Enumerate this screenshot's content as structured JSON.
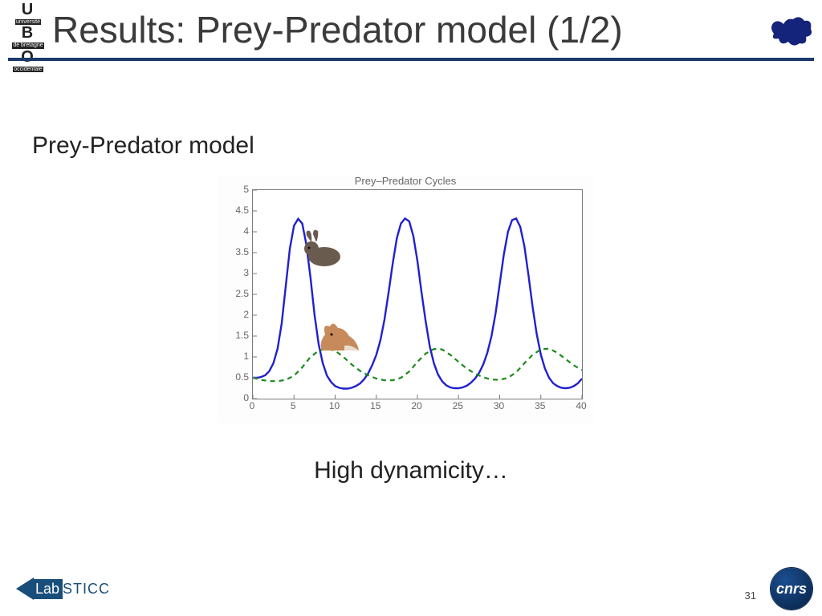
{
  "title": "Results: Prey-Predator model (1/2)",
  "subtitle": "Prey-Predator model",
  "caption": "High dynamicity…",
  "page_number": "31",
  "hr_color": "#1b3a6b",
  "logos": {
    "ubo_line1": "U",
    "ubo_line2": "université",
    "ubo_line3": "B",
    "ubo_line4": "de bretagne",
    "ubo_line5": "O",
    "ubo_line6": "occidentale",
    "labsticc_left": "Lab",
    "labsticc_right": "STICC",
    "cnrs": "cnrs"
  },
  "chart": {
    "type": "line",
    "title": "Prey–Predator Cycles",
    "background_color": "#ffffff",
    "axis_color": "#7a7a7a",
    "xlim": [
      0,
      40
    ],
    "ylim": [
      0,
      5
    ],
    "xticks": [
      0,
      5,
      10,
      15,
      20,
      25,
      30,
      35,
      40
    ],
    "yticks": [
      0,
      0.5,
      1,
      1.5,
      2,
      2.5,
      3,
      3.5,
      4,
      4.5,
      5
    ],
    "tick_fontsize": 12,
    "tick_color": "#666666",
    "series": [
      {
        "name": "prey",
        "color": "#2020d0",
        "stroke_width": 2.4,
        "dash": "none",
        "marker_icon": "rabbit",
        "icon_pos": {
          "x": 8.5,
          "y": 3.6
        },
        "data": [
          [
            0,
            0.5
          ],
          [
            0.5,
            0.5
          ],
          [
            1,
            0.52
          ],
          [
            1.5,
            0.56
          ],
          [
            2,
            0.66
          ],
          [
            2.5,
            0.85
          ],
          [
            3,
            1.2
          ],
          [
            3.5,
            1.8
          ],
          [
            4,
            2.7
          ],
          [
            4.5,
            3.6
          ],
          [
            5,
            4.15
          ],
          [
            5.5,
            4.31
          ],
          [
            6,
            4.2
          ],
          [
            6.5,
            3.7
          ],
          [
            7,
            2.9
          ],
          [
            7.5,
            2.0
          ],
          [
            8,
            1.3
          ],
          [
            8.5,
            0.85
          ],
          [
            9,
            0.55
          ],
          [
            9.5,
            0.4
          ],
          [
            10,
            0.3
          ],
          [
            10.5,
            0.26
          ],
          [
            11,
            0.24
          ],
          [
            11.5,
            0.24
          ],
          [
            12,
            0.26
          ],
          [
            12.5,
            0.3
          ],
          [
            13,
            0.36
          ],
          [
            13.5,
            0.46
          ],
          [
            14,
            0.6
          ],
          [
            14.5,
            0.8
          ],
          [
            15,
            1.05
          ],
          [
            15.5,
            1.4
          ],
          [
            16,
            1.9
          ],
          [
            16.5,
            2.55
          ],
          [
            17,
            3.25
          ],
          [
            17.5,
            3.85
          ],
          [
            18,
            4.2
          ],
          [
            18.5,
            4.32
          ],
          [
            19,
            4.25
          ],
          [
            19.5,
            3.9
          ],
          [
            20,
            3.3
          ],
          [
            20.5,
            2.55
          ],
          [
            21,
            1.85
          ],
          [
            21.5,
            1.25
          ],
          [
            22,
            0.85
          ],
          [
            22.5,
            0.58
          ],
          [
            23,
            0.42
          ],
          [
            23.5,
            0.32
          ],
          [
            24,
            0.27
          ],
          [
            24.5,
            0.25
          ],
          [
            25,
            0.25
          ],
          [
            25.5,
            0.27
          ],
          [
            26,
            0.31
          ],
          [
            26.5,
            0.38
          ],
          [
            27,
            0.48
          ],
          [
            27.5,
            0.62
          ],
          [
            28,
            0.82
          ],
          [
            28.5,
            1.1
          ],
          [
            29,
            1.5
          ],
          [
            29.5,
            2.05
          ],
          [
            30,
            2.75
          ],
          [
            30.5,
            3.45
          ],
          [
            31,
            4.0
          ],
          [
            31.5,
            4.28
          ],
          [
            32,
            4.32
          ],
          [
            32.5,
            4.12
          ],
          [
            33,
            3.65
          ],
          [
            33.5,
            2.95
          ],
          [
            34,
            2.2
          ],
          [
            34.5,
            1.55
          ],
          [
            35,
            1.05
          ],
          [
            35.5,
            0.72
          ],
          [
            36,
            0.5
          ],
          [
            36.5,
            0.37
          ],
          [
            37,
            0.3
          ],
          [
            37.5,
            0.26
          ],
          [
            38,
            0.25
          ],
          [
            38.5,
            0.26
          ],
          [
            39,
            0.3
          ],
          [
            39.5,
            0.37
          ],
          [
            40,
            0.48
          ]
        ]
      },
      {
        "name": "predator",
        "color": "#1a8a1a",
        "stroke_width": 2.2,
        "dash": "6,5",
        "marker_icon": "fox",
        "icon_pos": {
          "x": 10.5,
          "y": 1.5
        },
        "data": [
          [
            0,
            0.5
          ],
          [
            1,
            0.45
          ],
          [
            2,
            0.42
          ],
          [
            3,
            0.42
          ],
          [
            4,
            0.45
          ],
          [
            5,
            0.55
          ],
          [
            6,
            0.75
          ],
          [
            7,
            1.0
          ],
          [
            8,
            1.15
          ],
          [
            9,
            1.2
          ],
          [
            10,
            1.15
          ],
          [
            11,
            1.0
          ],
          [
            12,
            0.82
          ],
          [
            13,
            0.67
          ],
          [
            14,
            0.56
          ],
          [
            15,
            0.48
          ],
          [
            16,
            0.44
          ],
          [
            17,
            0.44
          ],
          [
            18,
            0.5
          ],
          [
            19,
            0.65
          ],
          [
            20,
            0.88
          ],
          [
            21,
            1.08
          ],
          [
            22,
            1.19
          ],
          [
            23,
            1.18
          ],
          [
            24,
            1.05
          ],
          [
            25,
            0.88
          ],
          [
            26,
            0.72
          ],
          [
            27,
            0.6
          ],
          [
            28,
            0.51
          ],
          [
            29,
            0.46
          ],
          [
            30,
            0.45
          ],
          [
            31,
            0.5
          ],
          [
            32,
            0.63
          ],
          [
            33,
            0.85
          ],
          [
            34,
            1.05
          ],
          [
            35,
            1.18
          ],
          [
            36,
            1.2
          ],
          [
            37,
            1.1
          ],
          [
            38,
            0.95
          ],
          [
            39,
            0.8
          ],
          [
            40,
            0.68
          ]
        ]
      }
    ]
  }
}
